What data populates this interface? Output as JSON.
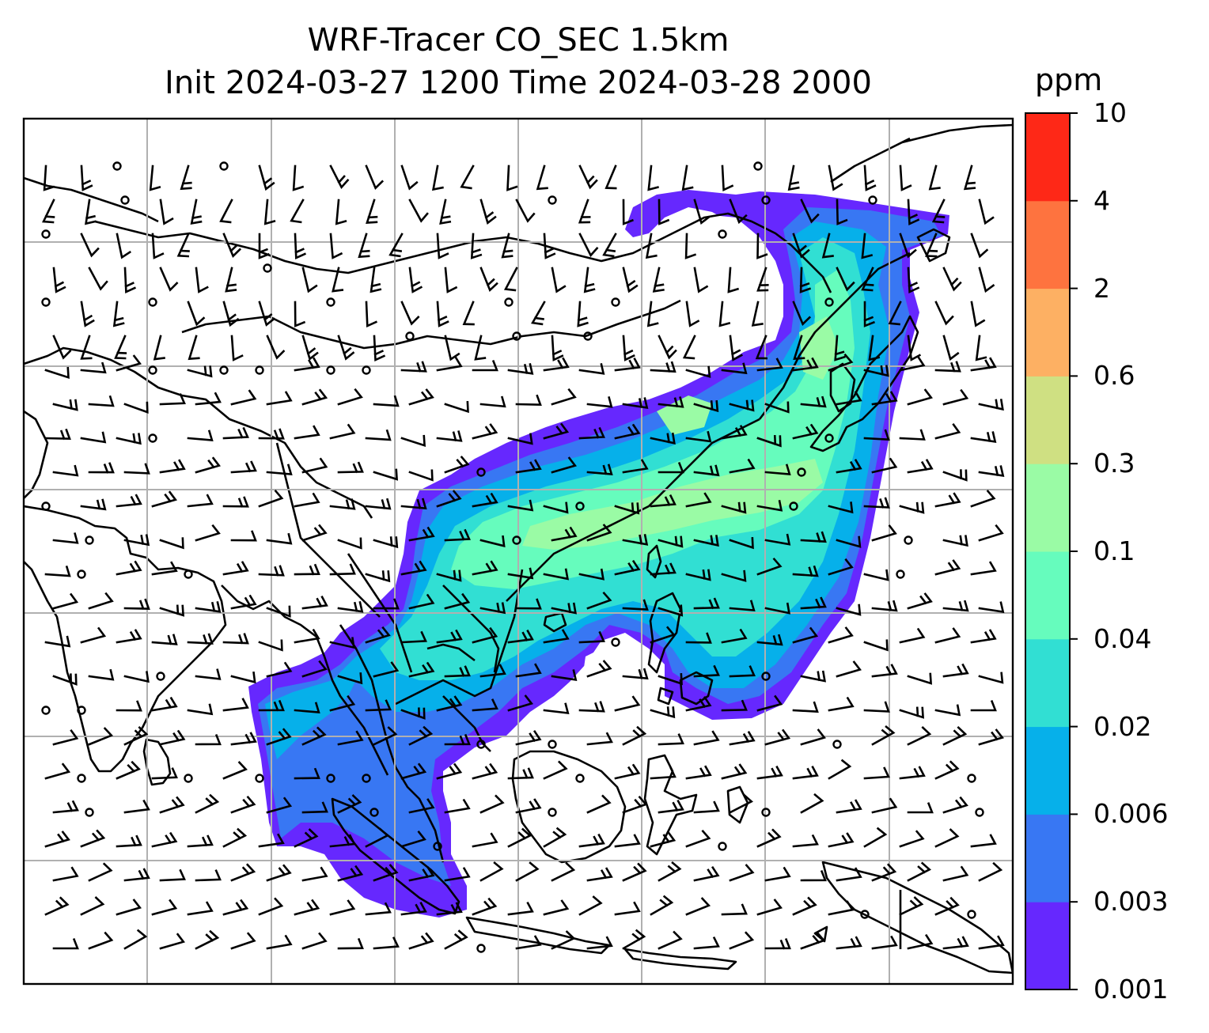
{
  "title": {
    "line1": "WRF-Tracer CO_SEC 1.5km",
    "line2": "Init 2024-03-27 1200 Time 2024-03-28 2000"
  },
  "colorbar": {
    "unit": "ppm",
    "ticks": [
      "0.001",
      "0.003",
      "0.006",
      "0.02",
      "0.04",
      "0.1",
      "0.3",
      "0.6",
      "2",
      "4",
      "10"
    ],
    "colors": [
      "#6628fe",
      "#3877f3",
      "#06b0ea",
      "#31dfd3",
      "#66fcbd",
      "#9afba5",
      "#cfe082",
      "#fdb063",
      "#fe733f",
      "#fe2817"
    ]
  },
  "map": {
    "gridlines": true,
    "features": [
      "coastlines",
      "country-borders",
      "wind-barbs"
    ]
  }
}
